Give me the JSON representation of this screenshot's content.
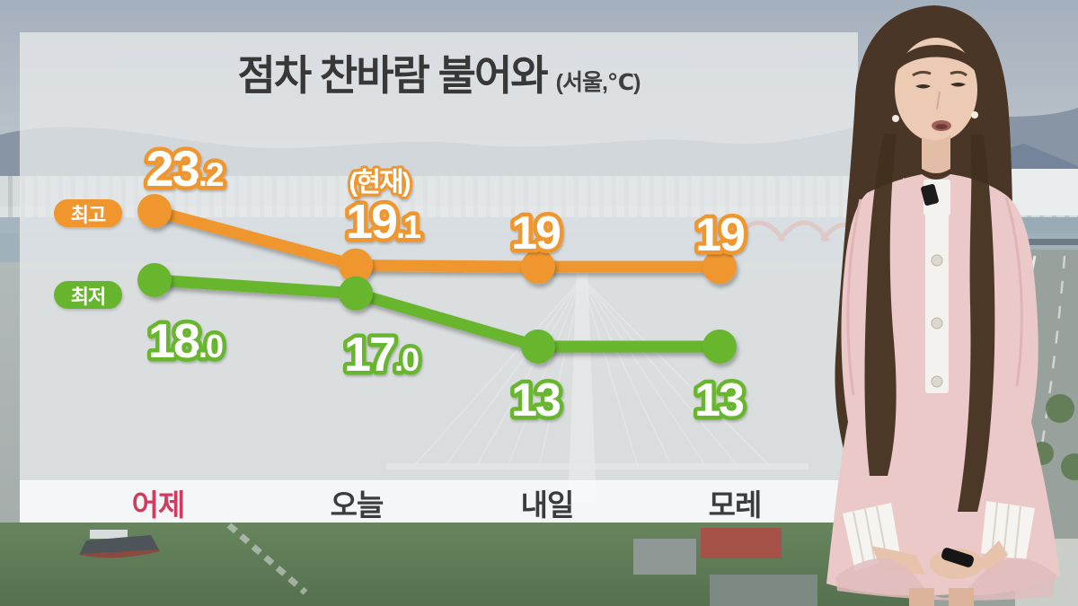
{
  "title": {
    "main": "점차 찬바람 불어와",
    "unit": "(서울,℃)"
  },
  "legend": {
    "high_label": "최고",
    "low_label": "최저"
  },
  "x_axis": {
    "labels": [
      "어제",
      "오늘",
      "내일",
      "모레"
    ]
  },
  "colors": {
    "high_series": "#f0962d",
    "low_series": "#67b52f",
    "yesterday_label": "#d23a5e",
    "day_label": "#3c3c3c",
    "title_text": "#3a3a3a",
    "value_fill": "#ffffff"
  },
  "chart_data": {
    "type": "line",
    "title": "점차 찬바람 불어와",
    "unit": "(서울,℃)",
    "categories": [
      "어제",
      "오늘",
      "내일",
      "모레"
    ],
    "series": [
      {
        "name": "최고",
        "color": "#f0962d",
        "values": [
          23.2,
          19.1,
          19,
          19
        ],
        "labels": [
          "23.2",
          "19.1",
          "19",
          "19"
        ]
      },
      {
        "name": "최저",
        "color": "#67b52f",
        "values": [
          18.0,
          17.0,
          13,
          13
        ],
        "labels": [
          "18.0",
          "17.0",
          "13",
          "13"
        ]
      }
    ],
    "annotations": [
      {
        "text": "(현재)",
        "series": "최고",
        "index": 1
      }
    ],
    "legend_position": "left",
    "grid": false
  }
}
